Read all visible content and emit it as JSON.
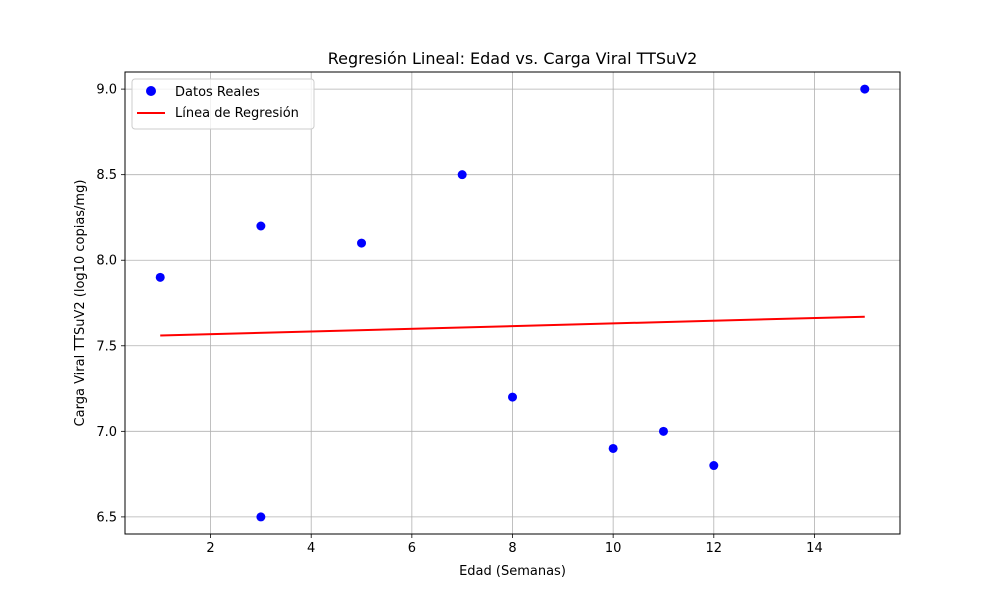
{
  "chart_data": {
    "type": "scatter",
    "title": "Regresión Lineal: Edad vs. Carga Viral TTSuV2",
    "xlabel": "Edad (Semanas)",
    "ylabel": "Carga Viral TTSuV2 (log10 copias/mg)",
    "xlim": [
      0.3,
      15.7
    ],
    "ylim": [
      6.4,
      9.1
    ],
    "xticks": [
      2,
      4,
      6,
      8,
      10,
      12,
      14
    ],
    "yticks": [
      6.5,
      7.0,
      7.5,
      8.0,
      8.5,
      9.0
    ],
    "xtick_labels": [
      "2",
      "4",
      "6",
      "8",
      "10",
      "12",
      "14"
    ],
    "ytick_labels": [
      "6.5",
      "7.0",
      "7.5",
      "8.0",
      "8.5",
      "9.0"
    ],
    "grid": true,
    "legend_position": "top-left",
    "series": [
      {
        "name": "Datos Reales",
        "kind": "scatter",
        "color": "#0000ff",
        "x": [
          1,
          3,
          3,
          5,
          7,
          8,
          10,
          11,
          12,
          15
        ],
        "y": [
          7.9,
          8.2,
          6.5,
          8.1,
          8.5,
          7.2,
          6.9,
          7.0,
          6.8,
          9.0
        ]
      },
      {
        "name": "Línea de Regresión",
        "kind": "line",
        "color": "#ff0000",
        "x": [
          1,
          15
        ],
        "y": [
          7.56,
          7.67
        ]
      }
    ]
  }
}
